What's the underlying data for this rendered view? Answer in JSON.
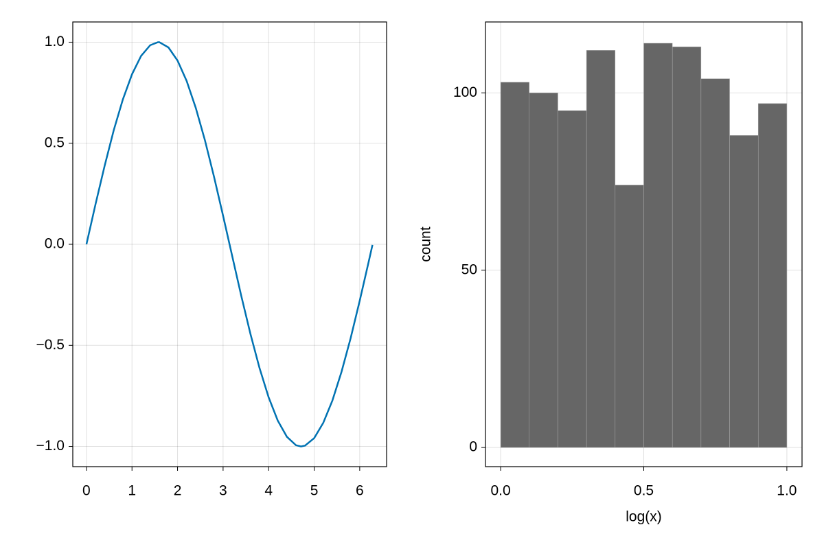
{
  "chart_data": [
    {
      "type": "line",
      "x": [
        0,
        0.2,
        0.4,
        0.6,
        0.8,
        1.0,
        1.2,
        1.4,
        1.57,
        1.6,
        1.8,
        2.0,
        2.2,
        2.4,
        2.6,
        2.8,
        3.0,
        3.2,
        3.4,
        3.6,
        3.8,
        4.0,
        4.2,
        4.4,
        4.6,
        4.71,
        4.8,
        5.0,
        5.2,
        5.4,
        5.6,
        5.8,
        6.0,
        6.2,
        6.28
      ],
      "values": [
        0,
        0.199,
        0.389,
        0.565,
        0.717,
        0.841,
        0.932,
        0.985,
        1.0,
        1.0,
        0.974,
        0.909,
        0.808,
        0.675,
        0.516,
        0.335,
        0.141,
        -0.058,
        -0.256,
        -0.443,
        -0.612,
        -0.757,
        -0.872,
        -0.952,
        -0.994,
        -1.0,
        -0.996,
        -0.959,
        -0.883,
        -0.773,
        -0.631,
        -0.465,
        -0.279,
        -0.083,
        -0.003
      ],
      "color": "#0072b2",
      "xlim": [
        -0.3,
        6.59
      ],
      "xticks": [
        0,
        1,
        2,
        3,
        4,
        5,
        6
      ],
      "ylim": [
        -1.1,
        1.1
      ],
      "yticks": [
        {
          "value": -1,
          "label": "−1.0"
        },
        {
          "value": -0.5,
          "label": "−0.5"
        },
        {
          "value": 0,
          "label": "0.0"
        },
        {
          "value": 0.5,
          "label": "0.5"
        },
        {
          "value": 1,
          "label": "1.0"
        }
      ],
      "grid": true
    },
    {
      "type": "histogram",
      "bins": [
        0,
        0.1,
        0.2,
        0.3,
        0.4,
        0.5,
        0.6,
        0.7,
        0.8,
        0.9,
        1.0
      ],
      "values": [
        103,
        100,
        95,
        112,
        74,
        114,
        113,
        104,
        88,
        97
      ],
      "color": "#666666",
      "xlabel": "log(x)",
      "ylabel": "count",
      "xlim": [
        -0.053,
        1.053
      ],
      "xticks": [
        {
          "value": 0,
          "label": "0.0"
        },
        {
          "value": 0.5,
          "label": "0.5"
        },
        {
          "value": 1,
          "label": "1.0"
        }
      ],
      "ylim": [
        -5.4,
        120
      ],
      "yticks": [
        0,
        50,
        100
      ],
      "grid": true
    }
  ]
}
